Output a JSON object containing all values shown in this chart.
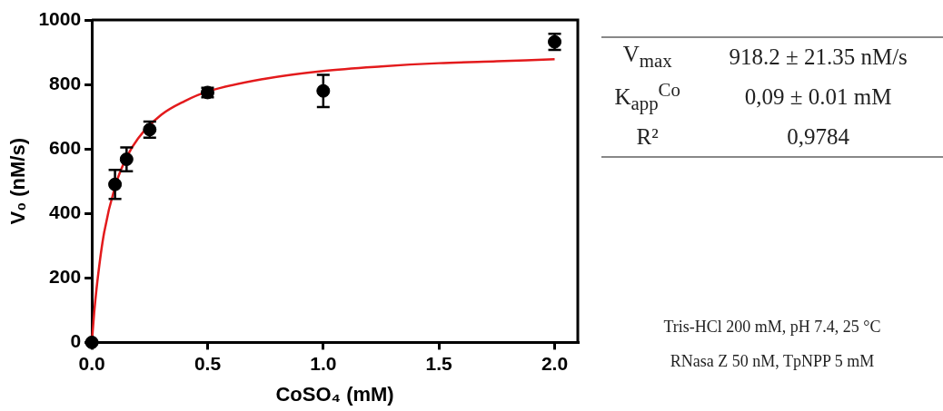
{
  "chart_data": {
    "type": "scatter",
    "xlabel": "CoSO₄ (mM)",
    "ylabel": "V₀ (nM/s)",
    "xlim": [
      0,
      2.1
    ],
    "xticks": [
      {
        "value": 0,
        "label": "0.0"
      },
      {
        "value": 0.5,
        "label": "0.5"
      },
      {
        "value": 1,
        "label": "1.0"
      },
      {
        "value": 1.5,
        "label": "1.5"
      },
      {
        "value": 2,
        "label": "2.0"
      }
    ],
    "ylim": [
      0,
      1000
    ],
    "yticks": [
      0,
      200,
      400,
      600,
      800,
      1000
    ],
    "grid": false,
    "legend": false,
    "marker": "circle",
    "series": [
      {
        "color": "#000000",
        "x": [
          0,
          0.1,
          0.15,
          0.25,
          0.5,
          1.0,
          2.0
        ],
        "values": [
          0,
          490,
          568,
          660,
          775,
          780,
          932
        ],
        "errors": [
          null,
          45,
          37,
          25,
          15,
          50,
          25
        ]
      },
      {
        "type": "line",
        "color": "#e31a1c",
        "marker": "none",
        "x": [
          0,
          0.01,
          0.02,
          0.05,
          0.1,
          0.15,
          0.2,
          0.3,
          0.4,
          0.5,
          0.75,
          1.0,
          1.25,
          1.5,
          1.75,
          2.0
        ],
        "values": [
          0,
          92,
          165,
          328,
          483,
          574,
          633,
          706,
          748,
          778,
          818,
          842,
          856,
          866,
          872,
          878
        ]
      }
    ],
    "annotations": [
      "V$_{max}$",
      "918.2 ± 21.35 nM/s",
      "K$_{app}$$^{Co}$",
      "0,09 ± 0.01 mM",
      "R²",
      "0,9784",
      "Tris-HCl 200 mM, pH 7.4, 25 °C",
      "RNasa Z 50 nM, TpNPP 5 mM"
    ]
  }
}
